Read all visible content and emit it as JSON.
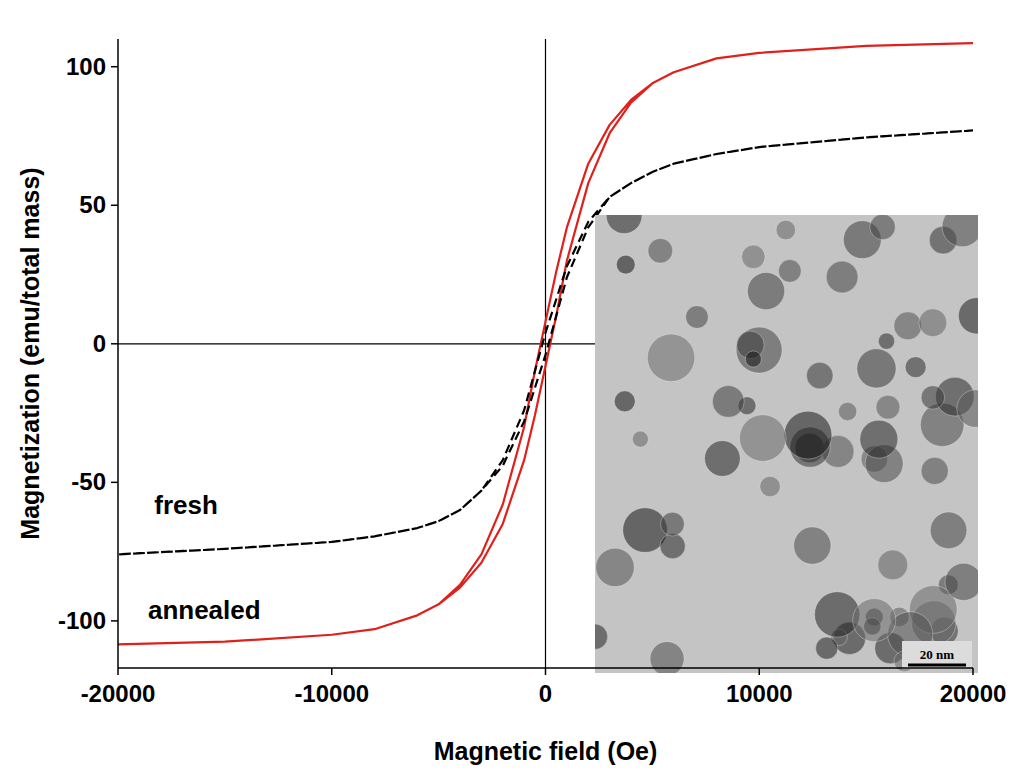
{
  "chart_data": {
    "type": "line",
    "x_label": "Magnetic field (Oe)",
    "y_label": "Magnetization (emu/total mass)",
    "x": [
      20000,
      15000,
      10000,
      8000,
      6000,
      5000,
      4000,
      3000,
      2000,
      1000,
      500,
      0,
      -500,
      -1000,
      -2000,
      -3000,
      -4000,
      -5000,
      -6000,
      -8000,
      -10000,
      -15000,
      -20000,
      -15000,
      -10000,
      -8000,
      -6000,
      -5000,
      -4000,
      -3000,
      -2000,
      -1000,
      -500,
      0,
      500,
      1000,
      2000,
      3000,
      4000,
      5000,
      6000,
      8000,
      10000,
      15000,
      20000
    ],
    "series": [
      {
        "name": "annealed",
        "color": "#e0201b",
        "line_style": "solid",
        "values": [
          108.5,
          107.5,
          105,
          103,
          98,
          94,
          88,
          79,
          65,
          42,
          26,
          8,
          -10,
          -30,
          -58,
          -76,
          -87,
          -94,
          -98,
          -103,
          -105,
          -107.5,
          -108.5,
          -107.5,
          -105,
          -103,
          -98,
          -94,
          -88,
          -79,
          -65,
          -42,
          -26,
          -8,
          10,
          30,
          58,
          76,
          87,
          94,
          98,
          103,
          105,
          107.5,
          108.5
        ]
      },
      {
        "name": "fresh",
        "color": "#000000",
        "line_style": "dashed",
        "values": [
          77,
          74.5,
          71,
          68.5,
          65,
          62,
          58,
          53,
          44,
          28,
          16,
          4,
          -10,
          -24,
          -42,
          -53,
          -60,
          -64,
          -66.5,
          -69.5,
          -71.5,
          -74,
          -76,
          -74,
          -71.5,
          -69.5,
          -66.5,
          -64,
          -60,
          -53,
          -44,
          -28,
          -16,
          -4,
          10,
          24,
          42,
          53,
          58,
          62,
          65,
          68.5,
          71,
          74.5,
          77
        ]
      }
    ],
    "annotations": [
      {
        "text": "fresh",
        "x": -18300,
        "y": -58
      },
      {
        "text": "annealed",
        "x": -18600,
        "y": -96
      }
    ],
    "inset": {
      "scale_label": "20 nm"
    },
    "xlim": [
      -20000,
      20000
    ],
    "ylim": [
      -117,
      110
    ],
    "xticks": [
      -20000,
      -10000,
      0,
      10000,
      20000
    ],
    "yticks": [
      -100,
      -50,
      0,
      50,
      100
    ],
    "grid": false
  }
}
